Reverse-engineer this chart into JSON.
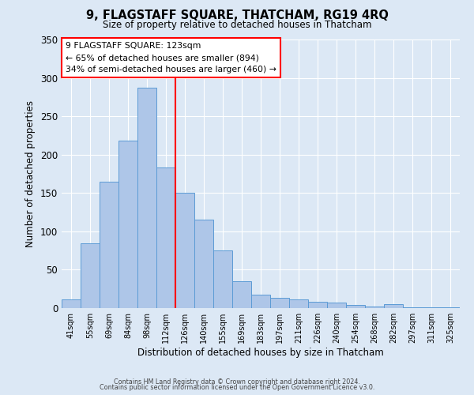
{
  "title": "9, FLAGSTAFF SQUARE, THATCHAM, RG19 4RQ",
  "subtitle": "Size of property relative to detached houses in Thatcham",
  "xlabel": "Distribution of detached houses by size in Thatcham",
  "ylabel": "Number of detached properties",
  "categories": [
    "41sqm",
    "55sqm",
    "69sqm",
    "84sqm",
    "98sqm",
    "112sqm",
    "126sqm",
    "140sqm",
    "155sqm",
    "169sqm",
    "183sqm",
    "197sqm",
    "211sqm",
    "226sqm",
    "240sqm",
    "254sqm",
    "268sqm",
    "282sqm",
    "297sqm",
    "311sqm",
    "325sqm"
  ],
  "values": [
    11,
    84,
    165,
    218,
    287,
    183,
    150,
    115,
    75,
    35,
    18,
    13,
    11,
    8,
    7,
    4,
    2,
    5,
    1,
    1,
    1
  ],
  "bar_color": "#aec6e8",
  "bar_edge_color": "#5b9bd5",
  "vline_color": "red",
  "annotation_title": "9 FLAGSTAFF SQUARE: 123sqm",
  "annotation_line1": "← 65% of detached houses are smaller (894)",
  "annotation_line2": "34% of semi-detached houses are larger (460) →",
  "annotation_box_color": "white",
  "annotation_box_edge_color": "red",
  "ylim": [
    0,
    350
  ],
  "yticks": [
    0,
    50,
    100,
    150,
    200,
    250,
    300,
    350
  ],
  "footer1": "Contains HM Land Registry data © Crown copyright and database right 2024.",
  "footer2": "Contains public sector information licensed under the Open Government Licence v3.0.",
  "bg_color": "#dce8f5"
}
